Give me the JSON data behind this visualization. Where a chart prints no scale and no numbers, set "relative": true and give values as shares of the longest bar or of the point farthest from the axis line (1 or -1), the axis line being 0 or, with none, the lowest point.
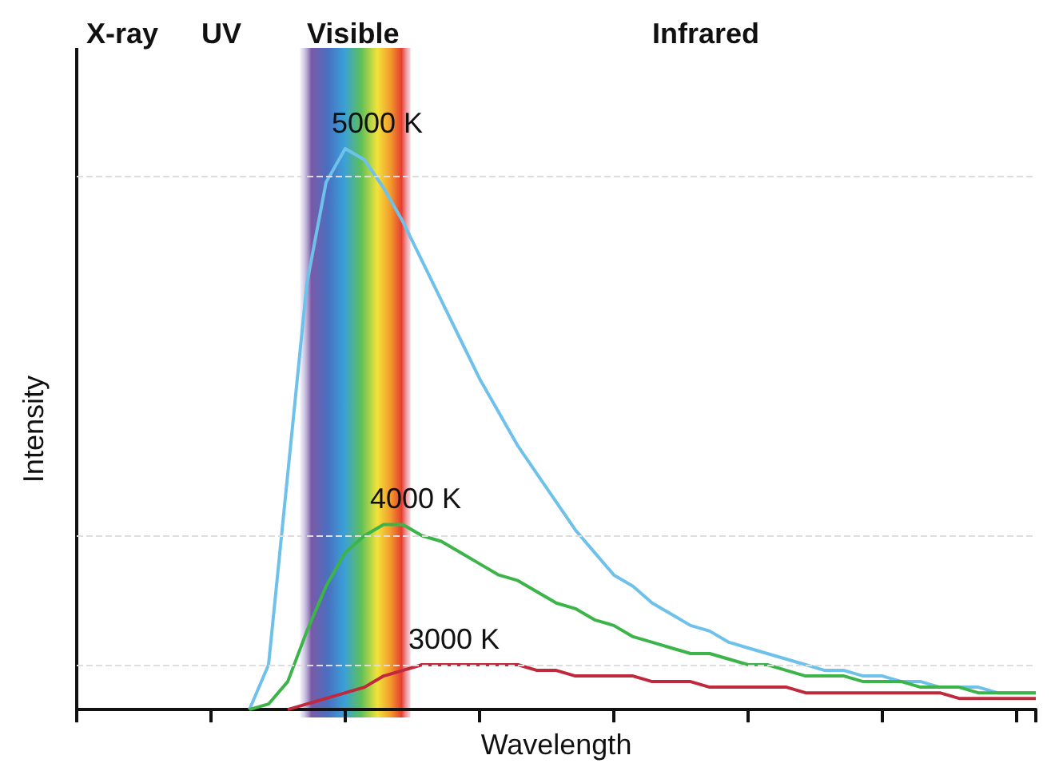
{
  "chart_data": {
    "type": "line",
    "relative": true,
    "xlabel": "Wavelength",
    "ylabel": "Intensity",
    "legend": false,
    "marker": "none",
    "line_style": "solid",
    "categories": [
      null,
      null,
      null,
      null,
      null,
      null,
      null,
      null,
      null,
      null,
      null,
      null,
      null,
      null,
      null,
      null,
      null,
      null,
      null,
      null,
      null,
      null,
      null,
      null,
      null,
      null,
      null,
      null,
      null,
      null,
      null,
      null,
      null,
      null,
      null,
      null,
      null,
      null,
      null,
      null,
      null,
      null,
      null,
      null,
      null,
      null,
      null,
      null,
      null,
      null,
      null
    ],
    "series": [
      {
        "name": "5000 K",
        "color": "#6ec1ea",
        "values": [
          null,
          null,
          null,
          null,
          null,
          null,
          null,
          null,
          null,
          0,
          0.08,
          0.42,
          0.76,
          0.94,
          1,
          0.98,
          0.93,
          0.87,
          0.8,
          0.73,
          0.66,
          0.59,
          0.53,
          0.47,
          0.42,
          0.37,
          0.32,
          0.28,
          0.24,
          0.22,
          0.19,
          0.17,
          0.15,
          0.14,
          0.12,
          0.11,
          0.1,
          0.09,
          0.08,
          0.07,
          0.07,
          0.06,
          0.06,
          0.05,
          0.05,
          0.04,
          0.04,
          0.04,
          0.03,
          0.03,
          0.03
        ]
      },
      {
        "name": "4000 K",
        "color": "#3db44a",
        "values": [
          null,
          null,
          null,
          null,
          null,
          null,
          null,
          null,
          null,
          0,
          0.01,
          0.05,
          0.14,
          0.22,
          0.28,
          0.31,
          0.33,
          0.33,
          0.31,
          0.3,
          0.28,
          0.26,
          0.24,
          0.23,
          0.21,
          0.19,
          0.18,
          0.16,
          0.15,
          0.13,
          0.12,
          0.11,
          0.1,
          0.1,
          0.09,
          0.08,
          0.08,
          0.07,
          0.06,
          0.06,
          0.06,
          0.05,
          0.05,
          0.05,
          0.04,
          0.04,
          0.04,
          0.03,
          0.03,
          0.03,
          0.03
        ]
      },
      {
        "name": "3000 K",
        "color": "#c0283c",
        "values": [
          null,
          null,
          null,
          null,
          null,
          null,
          null,
          null,
          null,
          null,
          null,
          0,
          0.01,
          0.02,
          0.03,
          0.04,
          0.06,
          0.07,
          0.08,
          0.08,
          0.08,
          0.08,
          0.08,
          0.08,
          0.07,
          0.07,
          0.06,
          0.06,
          0.06,
          0.06,
          0.05,
          0.05,
          0.05,
          0.04,
          0.04,
          0.04,
          0.04,
          0.04,
          0.03,
          0.03,
          0.03,
          0.03,
          0.03,
          0.03,
          0.03,
          0.03,
          0.02,
          0.02,
          0.02,
          0.02,
          0.02
        ]
      }
    ],
    "ref_lines": [
      {
        "axis": "y",
        "value": 0.95,
        "color": "#dddddd",
        "line_style": "dashed"
      },
      {
        "axis": "y",
        "value": 0.31,
        "color": "#dddddd",
        "line_style": "dashed"
      },
      {
        "axis": "y",
        "value": 0.08,
        "color": "#dddddd",
        "line_style": "dashed"
      }
    ],
    "annotations": [
      "X-ray",
      "UV",
      "Visible",
      "Infrared"
    ]
  }
}
